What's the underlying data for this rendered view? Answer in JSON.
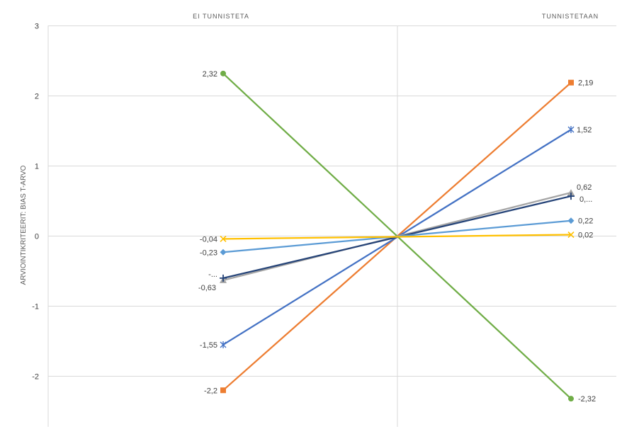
{
  "chart_data": {
    "type": "line",
    "categories": [
      "EI TUNNISTETA",
      "TUNNISTETAAN"
    ],
    "ylabel": "ARVIOINTIKRITEERIT: BIAS T-ARVO",
    "xlabel": "",
    "ylim": [
      -2.7,
      3
    ],
    "yticks": [
      3,
      2,
      1,
      0,
      -1,
      -2
    ],
    "ytick_labels": [
      "3",
      "2",
      "1",
      "0",
      "-1",
      "-2"
    ],
    "grid": true,
    "series": [
      {
        "values": [
          2.32,
          -2.32
        ],
        "labels": [
          "2,32",
          "-2,32"
        ],
        "color": "#70ad47",
        "marker": "circle"
      },
      {
        "values": [
          -2.2,
          2.19
        ],
        "labels": [
          "-2,2",
          "2,19"
        ],
        "color": "#ed7d31",
        "marker": "square"
      },
      {
        "values": [
          -1.55,
          1.52
        ],
        "labels": [
          "-1,55",
          "1,52"
        ],
        "color": "#4472c4",
        "marker": "star"
      },
      {
        "values": [
          -0.63,
          0.62
        ],
        "labels": [
          "-0,63",
          "0,62"
        ],
        "color": "#a5a5a5",
        "marker": "triangle"
      },
      {
        "values": [
          -0.6,
          0.57
        ],
        "labels": [
          "-...",
          "0,..."
        ],
        "color": "#264478",
        "marker": "plus"
      },
      {
        "values": [
          -0.23,
          0.22
        ],
        "labels": [
          "-0,23",
          "0,22"
        ],
        "color": "#5b9bd5",
        "marker": "diamond"
      },
      {
        "values": [
          -0.04,
          0.02
        ],
        "labels": [
          "-0,04",
          "0,02"
        ],
        "color": "#ffc000",
        "marker": "x"
      }
    ]
  }
}
